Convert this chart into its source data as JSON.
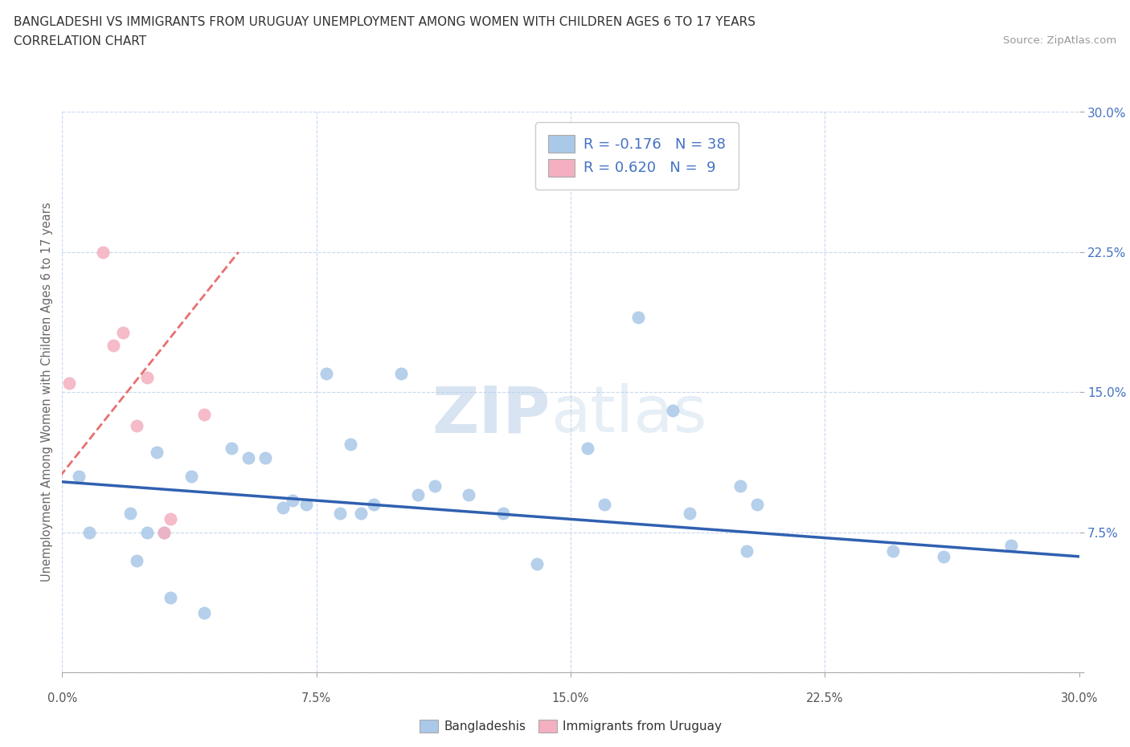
{
  "title_line1": "BANGLADESHI VS IMMIGRANTS FROM URUGUAY UNEMPLOYMENT AMONG WOMEN WITH CHILDREN AGES 6 TO 17 YEARS",
  "title_line2": "CORRELATION CHART",
  "source_text": "Source: ZipAtlas.com",
  "ylabel": "Unemployment Among Women with Children Ages 6 to 17 years",
  "xlim": [
    0,
    0.3
  ],
  "ylim": [
    0,
    0.3
  ],
  "xtick_vals": [
    0,
    0.075,
    0.15,
    0.225,
    0.3
  ],
  "ytick_vals": [
    0,
    0.075,
    0.15,
    0.225,
    0.3
  ],
  "blue_color": "#aac8e8",
  "pink_color": "#f4b0c0",
  "blue_line_color": "#3060b0",
  "pink_line_color": "#e87070",
  "r_blue": -0.176,
  "n_blue": 38,
  "r_pink": 0.62,
  "n_pink": 9,
  "blue_scatter_x": [
    0.005,
    0.008,
    0.02,
    0.022,
    0.025,
    0.028,
    0.03,
    0.032,
    0.038,
    0.042,
    0.05,
    0.055,
    0.06,
    0.065,
    0.068,
    0.072,
    0.078,
    0.082,
    0.085,
    0.088,
    0.092,
    0.1,
    0.105,
    0.11,
    0.12,
    0.13,
    0.14,
    0.155,
    0.16,
    0.17,
    0.18,
    0.185,
    0.2,
    0.202,
    0.205,
    0.245,
    0.26,
    0.28
  ],
  "blue_scatter_y": [
    0.105,
    0.075,
    0.085,
    0.06,
    0.075,
    0.118,
    0.075,
    0.04,
    0.105,
    0.032,
    0.12,
    0.115,
    0.115,
    0.088,
    0.092,
    0.09,
    0.16,
    0.085,
    0.122,
    0.085,
    0.09,
    0.16,
    0.095,
    0.1,
    0.095,
    0.085,
    0.058,
    0.12,
    0.09,
    0.19,
    0.14,
    0.085,
    0.1,
    0.065,
    0.09,
    0.065,
    0.062,
    0.068
  ],
  "pink_scatter_x": [
    0.002,
    0.012,
    0.015,
    0.018,
    0.022,
    0.025,
    0.03,
    0.032,
    0.042
  ],
  "pink_scatter_y": [
    0.155,
    0.225,
    0.175,
    0.182,
    0.132,
    0.158,
    0.075,
    0.082,
    0.138
  ],
  "blue_trend_x": [
    0.0,
    0.3
  ],
  "blue_trend_y": [
    0.102,
    0.062
  ],
  "pink_trend_x": [
    -0.005,
    0.052
  ],
  "pink_trend_y": [
    0.095,
    0.225
  ],
  "watermark_zip": "ZIP",
  "watermark_atlas": "atlas",
  "background_color": "#ffffff",
  "grid_color": "#c8d8ee",
  "legend_label_blue": "Bangladeshis",
  "legend_label_pink": "Immigrants from Uruguay"
}
